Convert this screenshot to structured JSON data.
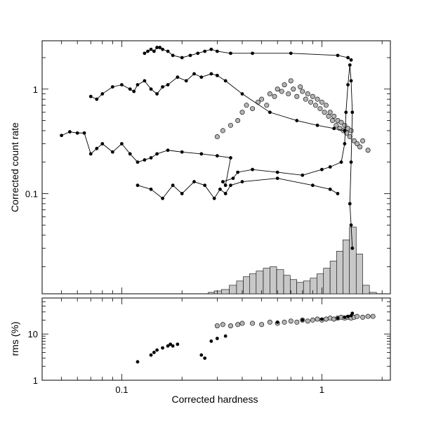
{
  "chart_data": [
    {
      "type": "scatter",
      "panel": "top",
      "ylabel": "Corrected count rate",
      "xscale": "log",
      "yscale": "log",
      "xlim": [
        0.04,
        2.2
      ],
      "ylim": [
        0.011,
        2.9
      ],
      "x_ticks": [
        0.1,
        1
      ],
      "x_tick_labels": [
        "0.1",
        "1"
      ],
      "y_ticks": [
        0.1,
        1
      ],
      "y_tick_labels": [
        "0.1",
        "1"
      ],
      "grid": false,
      "series": [
        {
          "style": "filled-markers-connected",
          "color": "#000000",
          "x": [
            0.05,
            0.055,
            0.06,
            0.065,
            0.07,
            0.075,
            0.08,
            0.09,
            0.1,
            0.11,
            0.12,
            0.13,
            0.14,
            0.15,
            0.17,
            0.2,
            0.25,
            0.3,
            0.35,
            0.33,
            0.32,
            0.36,
            0.38,
            0.45,
            0.6,
            0.8,
            1.0,
            1.1,
            1.25,
            1.3,
            1.32,
            1.35,
            1.38,
            1.4,
            1.42,
            1.4,
            1.38,
            1.4,
            1.42
          ],
          "y": [
            0.36,
            0.39,
            0.38,
            0.38,
            0.24,
            0.27,
            0.3,
            0.25,
            0.3,
            0.24,
            0.2,
            0.21,
            0.22,
            0.24,
            0.26,
            0.25,
            0.24,
            0.23,
            0.22,
            0.12,
            0.13,
            0.14,
            0.16,
            0.17,
            0.16,
            0.15,
            0.17,
            0.18,
            0.2,
            0.3,
            0.6,
            1.1,
            1.7,
            1.2,
            0.6,
            0.2,
            0.08,
            0.05,
            0.03
          ]
        },
        {
          "style": "filled-markers-connected",
          "color": "#000000",
          "x": [
            0.07,
            0.075,
            0.08,
            0.09,
            0.1,
            0.11,
            0.115,
            0.12,
            0.13,
            0.14,
            0.15,
            0.16,
            0.17,
            0.19,
            0.21,
            0.23,
            0.25,
            0.28,
            0.3,
            0.33,
            0.4,
            0.55,
            0.75,
            0.95,
            1.15,
            1.3
          ],
          "y": [
            0.85,
            0.8,
            0.9,
            1.05,
            1.1,
            1.0,
            0.95,
            1.1,
            1.2,
            1.0,
            0.9,
            1.05,
            1.1,
            1.3,
            1.2,
            1.4,
            1.3,
            1.4,
            1.35,
            1.2,
            0.9,
            0.6,
            0.5,
            0.45,
            0.42,
            0.4
          ]
        },
        {
          "style": "filled-markers-connected",
          "color": "#000000",
          "x": [
            0.13,
            0.135,
            0.14,
            0.145,
            0.15,
            0.155,
            0.16,
            0.17,
            0.18,
            0.2,
            0.22,
            0.24,
            0.26,
            0.28,
            0.3,
            0.35,
            0.45,
            0.7,
            1.2,
            1.35,
            1.4
          ],
          "y": [
            2.2,
            2.3,
            2.4,
            2.3,
            2.5,
            2.5,
            2.4,
            2.3,
            2.1,
            2.0,
            2.1,
            2.2,
            2.3,
            2.4,
            2.3,
            2.2,
            2.2,
            2.2,
            2.1,
            2.0,
            1.9
          ]
        },
        {
          "style": "filled-markers-connected",
          "color": "#000000",
          "x": [
            0.12,
            0.14,
            0.16,
            0.18,
            0.2,
            0.23,
            0.26,
            0.29,
            0.31,
            0.33,
            0.35,
            0.4,
            0.6,
            0.9,
            1.1,
            1.2
          ],
          "y": [
            0.12,
            0.11,
            0.09,
            0.12,
            0.1,
            0.13,
            0.12,
            0.09,
            0.11,
            0.1,
            0.12,
            0.13,
            0.14,
            0.12,
            0.11,
            0.1
          ]
        },
        {
          "style": "open-grey-markers",
          "color": "#b4b4b4",
          "x": [
            0.3,
            0.32,
            0.35,
            0.38,
            0.4,
            0.42,
            0.45,
            0.48,
            0.5,
            0.53,
            0.55,
            0.58,
            0.6,
            0.63,
            0.65,
            0.68,
            0.7,
            0.72,
            0.75,
            0.78,
            0.8,
            0.83,
            0.85,
            0.88,
            0.9,
            0.93,
            0.95,
            0.98,
            1.0,
            1.03,
            1.05,
            1.08,
            1.1,
            1.13,
            1.15,
            1.18,
            1.2,
            1.23,
            1.25,
            1.28,
            1.3,
            1.33,
            1.35,
            1.38,
            1.4,
            1.45,
            1.5,
            1.55,
            1.6,
            1.7
          ],
          "y": [
            0.35,
            0.4,
            0.45,
            0.5,
            0.6,
            0.7,
            0.65,
            0.75,
            0.8,
            0.7,
            0.9,
            0.85,
            1.0,
            0.95,
            1.1,
            0.9,
            1.2,
            1.0,
            0.85,
            1.05,
            0.95,
            0.8,
            0.9,
            0.75,
            0.85,
            0.7,
            0.8,
            0.65,
            0.75,
            0.6,
            0.7,
            0.55,
            0.6,
            0.5,
            0.55,
            0.45,
            0.5,
            0.42,
            0.48,
            0.4,
            0.45,
            0.38,
            0.42,
            0.35,
            0.4,
            0.32,
            0.3,
            0.28,
            0.32,
            0.26
          ]
        }
      ],
      "histogram": {
        "color": "#c8c8c8",
        "bin_centers": [
          0.28,
          0.3,
          0.33,
          0.36,
          0.39,
          0.42,
          0.45,
          0.49,
          0.53,
          0.57,
          0.62,
          0.67,
          0.72,
          0.78,
          0.84,
          0.91,
          0.98,
          1.06,
          1.14,
          1.23,
          1.32,
          1.43,
          1.54,
          1.66,
          1.8
        ],
        "counts": [
          1,
          2,
          3,
          6,
          9,
          12,
          14,
          16,
          18,
          19,
          17,
          13,
          10,
          8,
          9,
          11,
          14,
          18,
          23,
          30,
          38,
          47,
          28,
          6,
          1
        ]
      }
    },
    {
      "type": "scatter",
      "panel": "bottom",
      "xlabel": "Corrected hardness",
      "ylabel": "rms (%)",
      "xscale": "log",
      "yscale": "log",
      "xlim": [
        0.04,
        2.2
      ],
      "ylim": [
        1,
        60
      ],
      "x_ticks": [
        0.1,
        1
      ],
      "x_tick_labels": [
        "0.1",
        "1"
      ],
      "y_ticks": [
        1,
        10
      ],
      "y_tick_labels": [
        "1",
        "10"
      ],
      "grid": false,
      "series": [
        {
          "style": "filled-markers",
          "color": "#000000",
          "x": [
            0.12,
            0.14,
            0.145,
            0.15,
            0.16,
            0.17,
            0.175,
            0.18,
            0.19,
            0.25,
            0.26,
            0.28,
            0.3,
            0.33,
            0.6,
            0.8,
            1.0,
            1.2,
            1.3,
            1.35,
            1.4,
            1.42
          ],
          "y": [
            2.5,
            3.5,
            4.0,
            4.5,
            5.0,
            5.5,
            6.0,
            5.5,
            6.0,
            3.5,
            3.0,
            7.0,
            8.0,
            9.0,
            18,
            20,
            21,
            22,
            23,
            24,
            25,
            28
          ]
        },
        {
          "style": "open-grey-markers",
          "color": "#b4b4b4",
          "x": [
            0.3,
            0.32,
            0.35,
            0.38,
            0.4,
            0.45,
            0.5,
            0.55,
            0.6,
            0.65,
            0.7,
            0.75,
            0.8,
            0.85,
            0.9,
            0.95,
            1.0,
            1.05,
            1.1,
            1.15,
            1.2,
            1.25,
            1.3,
            1.35,
            1.4,
            1.45,
            1.5,
            1.6,
            1.7,
            1.8
          ],
          "y": [
            15,
            16,
            15,
            16,
            17,
            17,
            16,
            18,
            17,
            18,
            19,
            18,
            20,
            19,
            20,
            21,
            20,
            21,
            22,
            21,
            22,
            23,
            22,
            23,
            22,
            23,
            24,
            23,
            24,
            24
          ]
        }
      ]
    }
  ]
}
